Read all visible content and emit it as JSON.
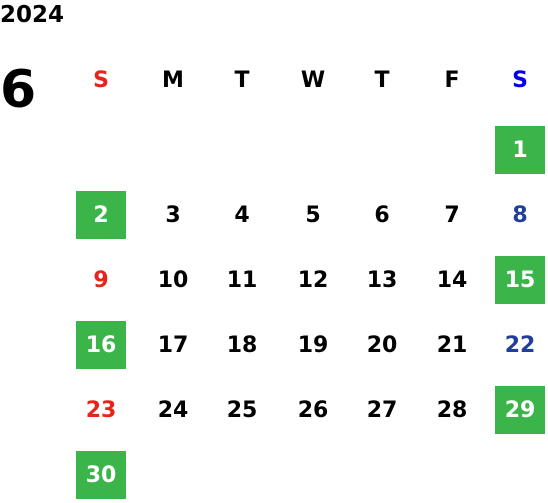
{
  "calendar": {
    "year": "2024",
    "month": "6",
    "weekdays": [
      "S",
      "M",
      "T",
      "W",
      "T",
      "F",
      "S"
    ],
    "weeks": [
      [
        null,
        null,
        null,
        null,
        null,
        null,
        {
          "day": "1",
          "highlight": true
        }
      ],
      [
        {
          "day": "2",
          "highlight": true
        },
        {
          "day": "3"
        },
        {
          "day": "4"
        },
        {
          "day": "5"
        },
        {
          "day": "6"
        },
        {
          "day": "7"
        },
        {
          "day": "8"
        }
      ],
      [
        {
          "day": "9"
        },
        {
          "day": "10"
        },
        {
          "day": "11"
        },
        {
          "day": "12"
        },
        {
          "day": "13"
        },
        {
          "day": "14"
        },
        {
          "day": "15",
          "highlight": true
        }
      ],
      [
        {
          "day": "16",
          "highlight": true
        },
        {
          "day": "17"
        },
        {
          "day": "18"
        },
        {
          "day": "19"
        },
        {
          "day": "20"
        },
        {
          "day": "21"
        },
        {
          "day": "22"
        }
      ],
      [
        {
          "day": "23"
        },
        {
          "day": "24"
        },
        {
          "day": "25"
        },
        {
          "day": "26"
        },
        {
          "day": "27"
        },
        {
          "day": "28"
        },
        {
          "day": "29",
          "highlight": true
        }
      ],
      [
        {
          "day": "30",
          "highlight": true
        }
      ]
    ],
    "colors": {
      "sunday": "#e8231a",
      "saturday": "#1f3f9a",
      "weekday": "#000000",
      "highlight": "#3bb54a",
      "highlight_text": "#ffffff",
      "saturday_header": "#0000ee"
    }
  }
}
